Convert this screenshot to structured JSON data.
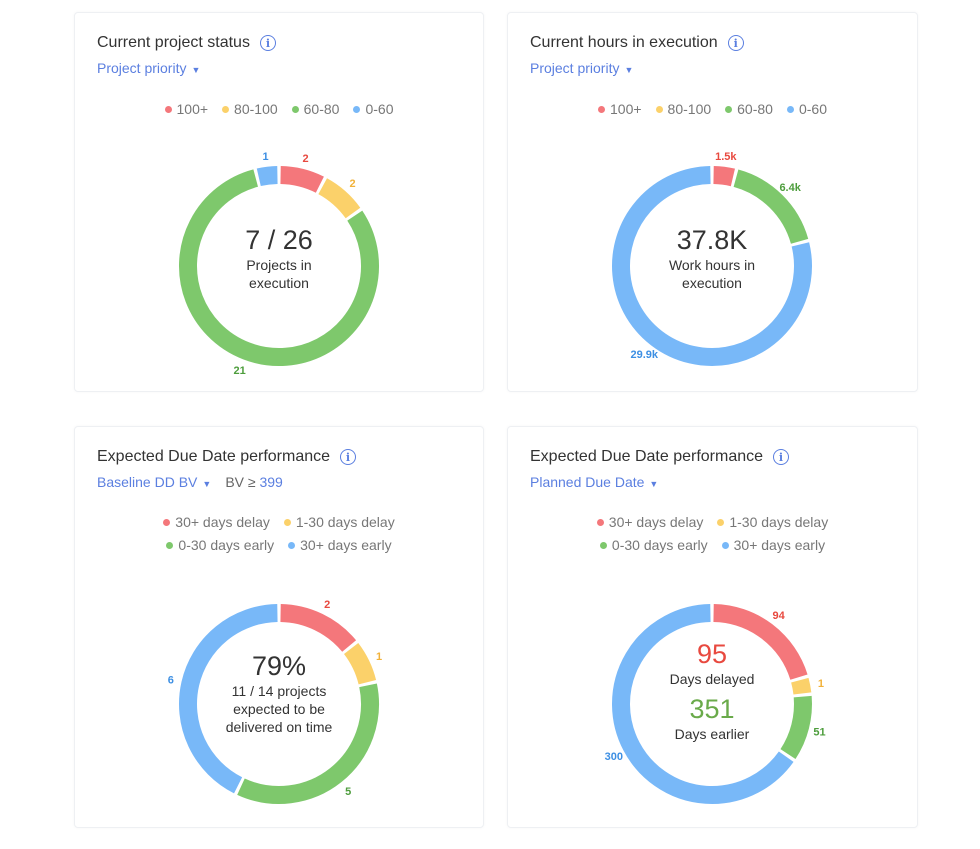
{
  "colors": {
    "red": "#f4777b",
    "yellow": "#fbd16a",
    "green": "#7ec86c",
    "blue": "#78b8f8",
    "red_label": "#e8493f",
    "yellow_label": "#f2b23a",
    "green_label": "#4d9d3c",
    "blue_label": "#3d8fe3"
  },
  "cards": [
    {
      "title": "Current project status",
      "info_icon": "info-icon",
      "dropdown": "Project priority",
      "legend": [
        "100+",
        "80-100",
        "60-80",
        "0-60"
      ],
      "segments": [
        {
          "value": 2,
          "label": "2",
          "color": "red"
        },
        {
          "value": 2,
          "label": "2",
          "color": "yellow"
        },
        {
          "value": 21,
          "label": "21",
          "color": "green"
        },
        {
          "value": 1,
          "label": "1",
          "color": "blue"
        }
      ],
      "center": {
        "big": "7 / 26",
        "line1": "Projects in",
        "line2": "execution"
      }
    },
    {
      "title": "Current hours in execution",
      "info_icon": "info-icon",
      "dropdown": "Project priority",
      "legend": [
        "100+",
        "80-100",
        "60-80",
        "0-60"
      ],
      "segments": [
        {
          "value": 1.5,
          "label": "1.5k",
          "color": "red"
        },
        {
          "value": 6.4,
          "label": "6.4k",
          "color": "green"
        },
        {
          "value": 29.9,
          "label": "29.9k",
          "color": "blue"
        }
      ],
      "center": {
        "big": "37.8K",
        "line1": "Work hours in",
        "line2": "execution"
      }
    },
    {
      "title": "Expected Due Date performance",
      "info_icon": "info-icon",
      "dropdown": "Baseline DD BV",
      "bv_prefix": "BV ≥",
      "bv_value": "399",
      "legend": [
        "30+ days delay",
        "1-30 days delay",
        "0-30 days early",
        "30+ days early"
      ],
      "segments": [
        {
          "value": 2,
          "label": "2",
          "color": "red"
        },
        {
          "value": 1,
          "label": "1",
          "color": "yellow"
        },
        {
          "value": 5,
          "label": "5",
          "color": "green"
        },
        {
          "value": 6,
          "label": "6",
          "color": "blue"
        }
      ],
      "center": {
        "big": "79%",
        "line1": "11 / 14 projects",
        "line2": "expected to be",
        "line3": "delivered on time"
      }
    },
    {
      "title": "Expected Due Date performance",
      "info_icon": "info-icon",
      "dropdown": "Planned Due Date",
      "legend": [
        "30+ days delay",
        "1-30 days delay",
        "0-30 days early",
        "30+ days early"
      ],
      "segments": [
        {
          "value": 94,
          "label": "94",
          "color": "red"
        },
        {
          "value": 1,
          "label": "1",
          "color": "yellow"
        },
        {
          "value": 51,
          "label": "51",
          "color": "green"
        },
        {
          "value": 300,
          "label": "300",
          "color": "blue"
        }
      ],
      "center": {
        "delayed": "95",
        "delayed_label": "Days delayed",
        "earlier": "351",
        "earlier_label": "Days earlier"
      }
    }
  ]
}
